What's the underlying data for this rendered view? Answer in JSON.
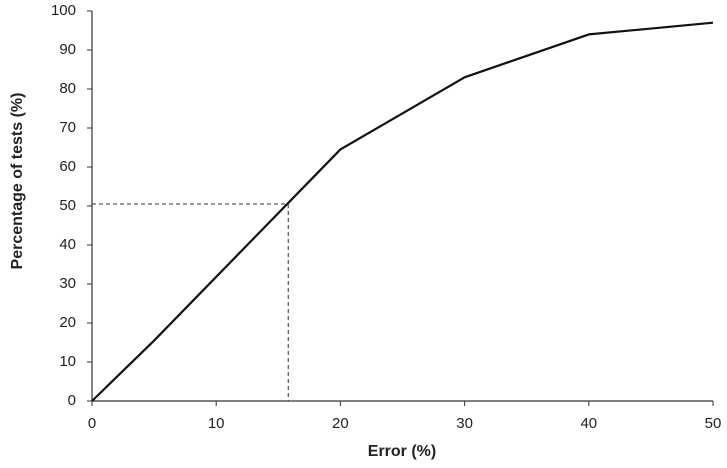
{
  "chart_data": {
    "type": "line",
    "x_label": "Error (%)",
    "y_label": "Percentage of tests (%)",
    "x": [
      0,
      5,
      20,
      30,
      40,
      50
    ],
    "series": [
      {
        "color": "#111111",
        "values": [
          0,
          15.5,
          64.5,
          83,
          94,
          97
        ]
      }
    ],
    "reference_point": {
      "x": 15.8,
      "y": 50.5
    },
    "xlim": [
      0,
      50
    ],
    "xticks": [
      0,
      10,
      20,
      30,
      40,
      50
    ],
    "ylim": [
      0,
      100
    ],
    "yticks": [
      0,
      10,
      20,
      30,
      40,
      50,
      60,
      70,
      80,
      90,
      100
    ],
    "grid": false
  }
}
